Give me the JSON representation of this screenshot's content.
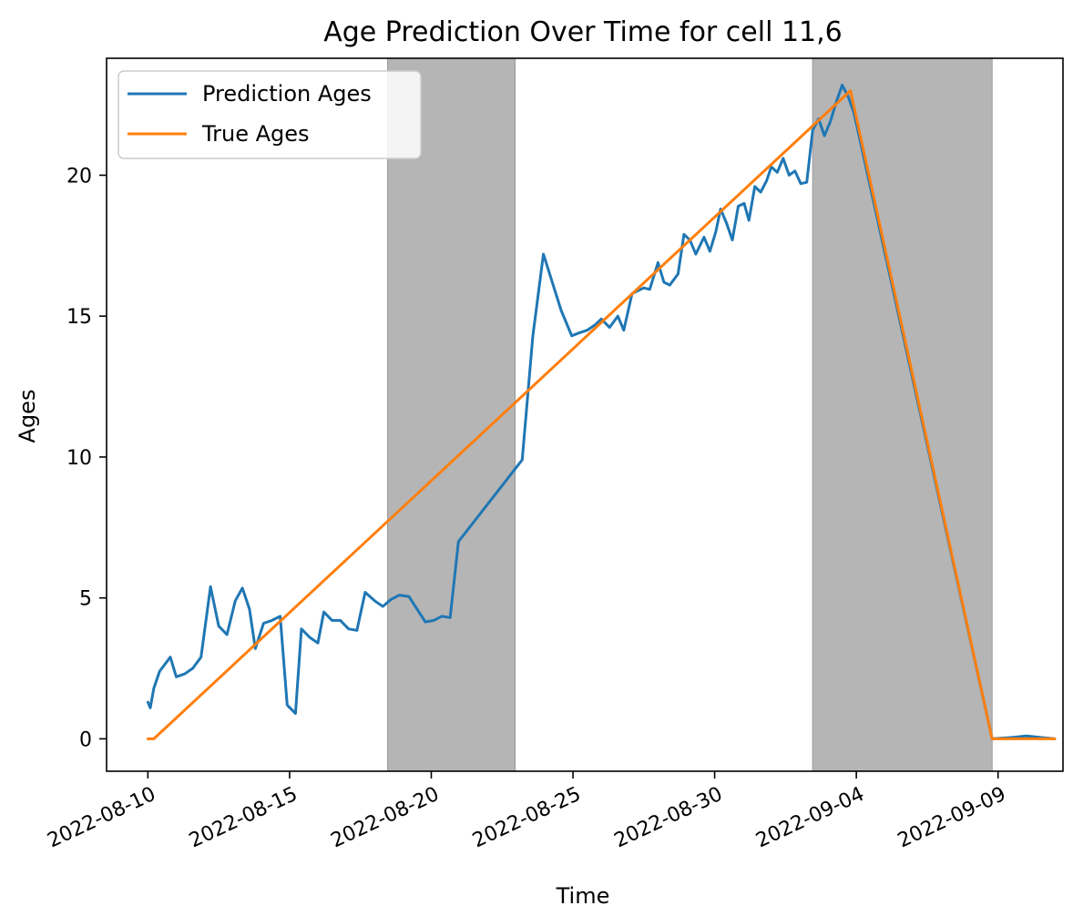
{
  "chart_data": {
    "type": "line",
    "title": "Age Prediction Over Time for cell 11,6",
    "xlabel": "Time",
    "ylabel": "Ages",
    "xlim": [
      "2022-08-08T13:00",
      "2022-09-11T07:00"
    ],
    "ylim": [
      -1.15,
      24.15
    ],
    "grid": false,
    "legend_position": "upper-left",
    "x_ticks": [
      "2022-08-10",
      "2022-08-15",
      "2022-08-20",
      "2022-08-25",
      "2022-08-30",
      "2022-09-04",
      "2022-09-09"
    ],
    "y_ticks": [
      0,
      5,
      10,
      15,
      20
    ],
    "shaded_regions": [
      {
        "start": "2022-08-18T11:00",
        "end": "2022-08-22T23:00"
      },
      {
        "start": "2022-09-02T11:00",
        "end": "2022-09-08T19:00"
      }
    ],
    "series": [
      {
        "name": "Prediction Ages",
        "color": "#1f77b4",
        "points": [
          [
            "2022-08-10T00:00",
            1.3
          ],
          [
            "2022-08-10T02:00",
            1.1
          ],
          [
            "2022-08-10T05:00",
            1.8
          ],
          [
            "2022-08-10T10:00",
            2.4
          ],
          [
            "2022-08-10T19:00",
            2.9
          ],
          [
            "2022-08-11T00:00",
            2.2
          ],
          [
            "2022-08-11T07:00",
            2.3
          ],
          [
            "2022-08-11T14:00",
            2.5
          ],
          [
            "2022-08-11T21:00",
            2.9
          ],
          [
            "2022-08-12T05:00",
            5.4
          ],
          [
            "2022-08-12T12:00",
            4.0
          ],
          [
            "2022-08-12T19:00",
            3.7
          ],
          [
            "2022-08-13T02:00",
            4.9
          ],
          [
            "2022-08-13T08:00",
            5.35
          ],
          [
            "2022-08-13T14:00",
            4.6
          ],
          [
            "2022-08-13T19:00",
            3.2
          ],
          [
            "2022-08-14T02:00",
            4.1
          ],
          [
            "2022-08-14T09:00",
            4.2
          ],
          [
            "2022-08-14T16:00",
            4.35
          ],
          [
            "2022-08-14T22:00",
            1.2
          ],
          [
            "2022-08-15T05:00",
            0.9
          ],
          [
            "2022-08-15T10:00",
            3.9
          ],
          [
            "2022-08-15T17:00",
            3.6
          ],
          [
            "2022-08-16T00:00",
            3.4
          ],
          [
            "2022-08-16T05:00",
            4.5
          ],
          [
            "2022-08-16T12:00",
            4.2
          ],
          [
            "2022-08-16T19:00",
            4.2
          ],
          [
            "2022-08-17T02:00",
            3.9
          ],
          [
            "2022-08-17T09:00",
            3.85
          ],
          [
            "2022-08-17T16:00",
            5.2
          ],
          [
            "2022-08-18T00:00",
            4.9
          ],
          [
            "2022-08-18T07:00",
            4.7
          ],
          [
            "2022-08-18T14:00",
            4.95
          ],
          [
            "2022-08-18T21:00",
            5.1
          ],
          [
            "2022-08-19T05:00",
            5.05
          ],
          [
            "2022-08-19T12:00",
            4.6
          ],
          [
            "2022-08-19T19:00",
            4.15
          ],
          [
            "2022-08-20T02:00",
            4.2
          ],
          [
            "2022-08-20T09:00",
            4.35
          ],
          [
            "2022-08-20T16:00",
            4.3
          ],
          [
            "2022-08-20T23:00",
            7.0
          ],
          [
            "2022-08-23T05:00",
            9.9
          ],
          [
            "2022-08-23T14:00",
            14.3
          ],
          [
            "2022-08-23T23:00",
            17.2
          ],
          [
            "2022-08-24T14:00",
            15.2
          ],
          [
            "2022-08-24T23:00",
            14.3
          ],
          [
            "2022-08-25T05:00",
            14.4
          ],
          [
            "2022-08-25T12:00",
            14.5
          ],
          [
            "2022-08-25T19:00",
            14.7
          ],
          [
            "2022-08-26T00:00",
            14.9
          ],
          [
            "2022-08-26T07:00",
            14.6
          ],
          [
            "2022-08-26T14:00",
            15.0
          ],
          [
            "2022-08-26T19:00",
            14.5
          ],
          [
            "2022-08-27T02:00",
            15.8
          ],
          [
            "2022-08-27T07:00",
            15.9
          ],
          [
            "2022-08-27T12:00",
            16.0
          ],
          [
            "2022-08-27T17:00",
            15.95
          ],
          [
            "2022-08-28T00:00",
            16.9
          ],
          [
            "2022-08-28T05:00",
            16.2
          ],
          [
            "2022-08-28T10:00",
            16.1
          ],
          [
            "2022-08-28T17:00",
            16.5
          ],
          [
            "2022-08-28T22:00",
            17.9
          ],
          [
            "2022-08-29T03:00",
            17.7
          ],
          [
            "2022-08-29T08:00",
            17.2
          ],
          [
            "2022-08-29T15:00",
            17.8
          ],
          [
            "2022-08-29T20:00",
            17.3
          ],
          [
            "2022-08-30T01:00",
            18.0
          ],
          [
            "2022-08-30T05:00",
            18.8
          ],
          [
            "2022-08-30T10:00",
            18.3
          ],
          [
            "2022-08-30T15:00",
            17.7
          ],
          [
            "2022-08-30T20:00",
            18.9
          ],
          [
            "2022-08-31T01:00",
            19.0
          ],
          [
            "2022-08-31T05:00",
            18.4
          ],
          [
            "2022-08-31T10:00",
            19.6
          ],
          [
            "2022-08-31T15:00",
            19.4
          ],
          [
            "2022-08-31T20:00",
            19.8
          ],
          [
            "2022-09-01T00:00",
            20.3
          ],
          [
            "2022-09-01T05:00",
            20.1
          ],
          [
            "2022-09-01T10:00",
            20.6
          ],
          [
            "2022-09-01T15:00",
            20.0
          ],
          [
            "2022-09-01T20:00",
            20.15
          ],
          [
            "2022-09-02T01:00",
            19.7
          ],
          [
            "2022-09-02T06:00",
            19.75
          ],
          [
            "2022-09-02T11:00",
            21.6
          ],
          [
            "2022-09-02T16:00",
            22.0
          ],
          [
            "2022-09-02T21:00",
            21.4
          ],
          [
            "2022-09-03T02:00",
            21.9
          ],
          [
            "2022-09-03T07:00",
            22.6
          ],
          [
            "2022-09-03T12:00",
            23.2
          ],
          [
            "2022-09-03T17:00",
            22.8
          ],
          [
            "2022-09-03T22:00",
            22.2
          ],
          [
            "2022-09-08T19:00",
            0.0
          ],
          [
            "2022-09-09T12:00",
            0.05
          ],
          [
            "2022-09-10T00:00",
            0.1
          ],
          [
            "2022-09-10T12:00",
            0.05
          ],
          [
            "2022-09-11T00:00",
            0.0
          ]
        ]
      },
      {
        "name": "True Ages",
        "color": "#ff7f0e",
        "points": [
          [
            "2022-08-10T00:00",
            0.0
          ],
          [
            "2022-08-10T05:00",
            0.0
          ],
          [
            "2022-09-03T19:00",
            23.0
          ],
          [
            "2022-09-08T19:00",
            0.0
          ],
          [
            "2022-09-11T00:00",
            0.0
          ]
        ]
      }
    ]
  }
}
